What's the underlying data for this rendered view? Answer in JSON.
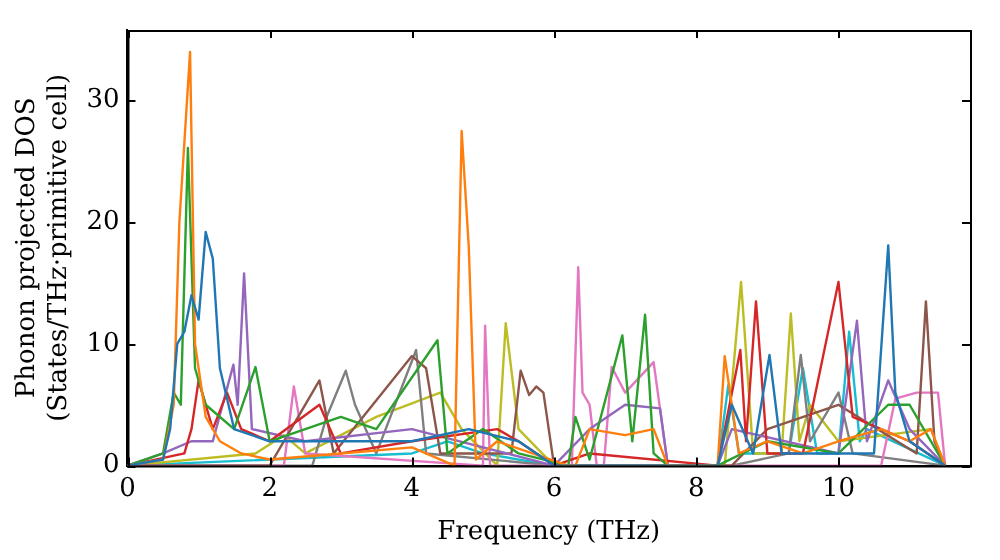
{
  "chart_data": {
    "type": "line",
    "xlabel": "Frequency (THz)",
    "ylabel": "Phonon projected DOS\n(States/THz·primitive cell)",
    "xlim": [
      0,
      11.85
    ],
    "ylim": [
      0,
      35.8
    ],
    "xticks": [
      0,
      2,
      4,
      6,
      8,
      10
    ],
    "yticks": [
      0,
      10,
      20,
      30
    ],
    "marker": "none",
    "line_style": "solid",
    "legend": false,
    "series": [
      {
        "color": "#1f77b4",
        "x": [
          0,
          0.5,
          0.6,
          0.7,
          0.8,
          0.9,
          1.0,
          1.1,
          1.2,
          1.3,
          1.5,
          2,
          3,
          4,
          4.8,
          5.5,
          6,
          8.3,
          8.5,
          8.8,
          9.03,
          9.2,
          10.5,
          10.7,
          10.8,
          11,
          11.5
        ],
        "values": [
          0,
          0.5,
          3,
          10,
          11,
          14,
          12,
          19.2,
          17,
          8,
          3,
          2,
          2,
          2,
          3,
          2,
          0,
          0,
          5,
          1,
          9.1,
          1,
          1,
          18.1,
          6,
          2,
          0
        ]
      },
      {
        "color": "#ff7f0e",
        "x": [
          0,
          0.5,
          0.65,
          0.73,
          0.88,
          0.95,
          1.1,
          1.3,
          1.6,
          2,
          3,
          4,
          4.6,
          4.7,
          4.8,
          4.9,
          5.2,
          6.2,
          6.3,
          6.5,
          7,
          7.4,
          7.6,
          8.3,
          8.4,
          8.6,
          9,
          9.5,
          10,
          10.6,
          11,
          11.3,
          11.5
        ],
        "values": [
          0,
          0.5,
          5,
          20,
          34,
          10,
          4,
          2,
          1,
          0.5,
          1,
          1.5,
          0,
          27.5,
          18,
          0.5,
          2,
          0,
          0,
          3,
          2.5,
          3,
          0,
          0,
          9,
          1,
          2,
          1,
          2,
          3,
          2,
          3,
          0
        ]
      },
      {
        "color": "#2ca02c",
        "x": [
          0,
          0.5,
          0.65,
          0.75,
          0.85,
          0.95,
          1.1,
          1.5,
          1.8,
          2,
          2.5,
          3,
          3.5,
          4.36,
          4.5,
          5,
          5.5,
          6.2,
          6.3,
          6.5,
          6.96,
          7.1,
          7.28,
          7.4,
          7.6,
          8.3,
          9,
          10,
          10.7,
          11,
          11.5
        ],
        "values": [
          0,
          1,
          6,
          5,
          26.1,
          8,
          5,
          3,
          8.1,
          2,
          3,
          4,
          3,
          10.3,
          1,
          3,
          1,
          0,
          4,
          0.5,
          10.7,
          2,
          12.4,
          1,
          0,
          0,
          2,
          1,
          5,
          5,
          0
        ]
      },
      {
        "color": "#d62728",
        "x": [
          0,
          0.8,
          0.9,
          1.0,
          1.2,
          1.4,
          1.6,
          2,
          2.7,
          3,
          4,
          5.2,
          5.5,
          6,
          6.5,
          8.3,
          8.62,
          8.7,
          8.84,
          9,
          9.5,
          10.0,
          10.2,
          11,
          11.5
        ],
        "values": [
          0,
          1,
          3,
          7,
          3,
          6,
          3,
          2,
          5,
          1,
          2,
          3,
          2,
          0,
          1,
          0,
          9.5,
          2,
          13.5,
          1,
          1,
          15.1,
          4,
          2,
          0
        ]
      },
      {
        "color": "#9467bd",
        "x": [
          0,
          0.5,
          0.9,
          1.2,
          1.49,
          1.55,
          1.64,
          1.75,
          2.5,
          4,
          6,
          6.5,
          7,
          7.49,
          7.6,
          8.3,
          8.5,
          10,
          10.26,
          10.4,
          10.7,
          11,
          11.5
        ],
        "values": [
          0,
          1,
          2,
          2,
          8.3,
          5,
          15.8,
          3,
          2,
          3,
          0,
          3,
          5,
          4.7,
          0,
          0,
          3,
          1,
          11.9,
          2,
          7,
          3,
          0
        ]
      },
      {
        "color": "#8c564b",
        "x": [
          0,
          2,
          2.7,
          2.9,
          4,
          4.2,
          4.4,
          5.4,
          5.53,
          5.65,
          5.75,
          5.85,
          6,
          8.5,
          9,
          10,
          11.1,
          11.23,
          11.35,
          11.5
        ],
        "values": [
          0,
          0,
          7,
          1,
          9,
          8,
          1,
          1,
          7.8,
          5.8,
          6.5,
          6,
          0,
          0,
          3,
          5,
          1,
          13.5,
          2,
          0
        ]
      },
      {
        "color": "#e377c2",
        "x": [
          0,
          2.2,
          2.34,
          2.5,
          5,
          5.03,
          5.1,
          6.25,
          6.34,
          6.4,
          6.5,
          6.6,
          6.7,
          6.81,
          7,
          7.4,
          7.6,
          10.6,
          10.8,
          11.1,
          11.4,
          11.5
        ],
        "values": [
          0,
          0,
          6.5,
          1,
          0,
          11.5,
          0,
          0,
          16.3,
          6,
          5,
          0,
          0,
          8.1,
          6,
          8.5,
          0,
          0,
          5.5,
          6,
          6,
          0
        ]
      },
      {
        "color": "#7f7f7f",
        "x": [
          0,
          2.6,
          2.8,
          3.07,
          3.2,
          3.5,
          4.06,
          4.2,
          6,
          8.5,
          9.3,
          9.47,
          9.6,
          10,
          10.2,
          11.5
        ],
        "values": [
          0,
          0,
          4,
          7.8,
          5,
          1,
          9.5,
          1,
          0,
          0,
          1,
          9.1,
          2,
          6,
          1,
          0
        ]
      },
      {
        "color": "#bcbd22",
        "x": [
          0,
          1.8,
          2.2,
          2.5,
          3.5,
          4.4,
          4.7,
          5.2,
          5.32,
          5.5,
          6,
          8.4,
          8.63,
          8.8,
          9.2,
          9.33,
          9.45,
          9.6,
          10,
          11.3,
          11.5
        ],
        "values": [
          0,
          1,
          2.5,
          1,
          4,
          6,
          3,
          0,
          11.7,
          3,
          0,
          0,
          15.1,
          1,
          1,
          12.5,
          2,
          5,
          2,
          3,
          0
        ]
      },
      {
        "color": "#17becf",
        "x": [
          0,
          4,
          4.5,
          5,
          6,
          8.3,
          8.45,
          8.6,
          9.3,
          9.5,
          9.7,
          10.0,
          10.15,
          10.3,
          10.4,
          11.5
        ],
        "values": [
          0,
          1,
          2,
          1,
          0,
          0,
          6.6,
          1,
          1,
          8,
          1,
          1,
          11,
          2,
          3,
          0
        ]
      }
    ]
  }
}
